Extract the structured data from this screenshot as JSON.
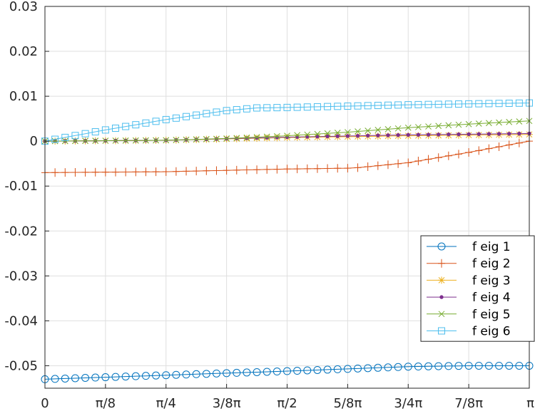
{
  "chart_data": {
    "type": "line",
    "title": "",
    "xlabel": "",
    "ylabel": "",
    "xlim": [
      0,
      3.14159
    ],
    "ylim": [
      -0.055,
      0.03
    ],
    "grid": true,
    "legend_position": "bottom-right",
    "x_ticks": [
      {
        "value": 0,
        "label": "0"
      },
      {
        "value": 0.3927,
        "label": "π/8"
      },
      {
        "value": 0.7854,
        "label": "π/4"
      },
      {
        "value": 1.1781,
        "label": "3/8π"
      },
      {
        "value": 1.5708,
        "label": "π/2"
      },
      {
        "value": 1.9635,
        "label": "5/8π"
      },
      {
        "value": 2.3562,
        "label": "3/4π"
      },
      {
        "value": 2.7489,
        "label": "7/8π"
      },
      {
        "value": 3.1416,
        "label": "π"
      }
    ],
    "y_ticks": [
      {
        "value": 0.03,
        "label": "0.03"
      },
      {
        "value": 0.02,
        "label": "0.02"
      },
      {
        "value": 0.01,
        "label": "0.01"
      },
      {
        "value": 0,
        "label": "0"
      },
      {
        "value": -0.01,
        "label": "-0.01"
      },
      {
        "value": -0.02,
        "label": "-0.02"
      },
      {
        "value": -0.03,
        "label": "-0.03"
      },
      {
        "value": -0.04,
        "label": "-0.04"
      },
      {
        "value": -0.05,
        "label": "-0.05"
      }
    ],
    "x_points": 49,
    "series": [
      {
        "name": "f eig 1",
        "color": "#0072BD",
        "marker": "circle",
        "x": [
          0,
          1.5708,
          2.3562,
          2.7489,
          3.1416
        ],
        "y": [
          -0.053,
          -0.0512,
          -0.0502,
          -0.05,
          -0.05
        ]
      },
      {
        "name": "f eig 2",
        "color": "#D95319",
        "marker": "plus",
        "x": [
          0,
          0.7854,
          1.5708,
          2.0,
          2.3562,
          2.7489,
          3.1416
        ],
        "y": [
          -0.007,
          -0.0068,
          -0.0062,
          -0.006,
          -0.0048,
          -0.0025,
          0
        ]
      },
      {
        "name": "f eig 3",
        "color": "#EDB120",
        "marker": "asterisk",
        "x": [
          0,
          0.7854,
          1.5708,
          2.3562,
          3.1416
        ],
        "y": [
          0,
          0.0002,
          0.0008,
          0.0012,
          0.0015
        ]
      },
      {
        "name": "f eig 4",
        "color": "#7E2F8E",
        "marker": "point",
        "x": [
          0,
          0.7854,
          1.5708,
          2.3562,
          3.1416
        ],
        "y": [
          0,
          0.0002,
          0.0009,
          0.0014,
          0.0017
        ]
      },
      {
        "name": "f eig 5",
        "color": "#77AC30",
        "marker": "cross",
        "x": [
          0,
          0.7854,
          1.1781,
          1.5708,
          1.9635,
          2.3562,
          2.7489,
          3.1416
        ],
        "y": [
          0,
          0.0002,
          0.0006,
          0.0012,
          0.002,
          0.003,
          0.0038,
          0.0045
        ]
      },
      {
        "name": "f eig 6",
        "color": "#4DBEEE",
        "marker": "square",
        "x": [
          0,
          0.3927,
          0.7854,
          1.1781,
          1.3744,
          1.5708,
          1.9635,
          2.3562,
          2.7489,
          3.1416
        ],
        "y": [
          0,
          0.0025,
          0.0048,
          0.0068,
          0.0074,
          0.0075,
          0.0078,
          0.0081,
          0.0083,
          0.0085
        ]
      }
    ]
  }
}
